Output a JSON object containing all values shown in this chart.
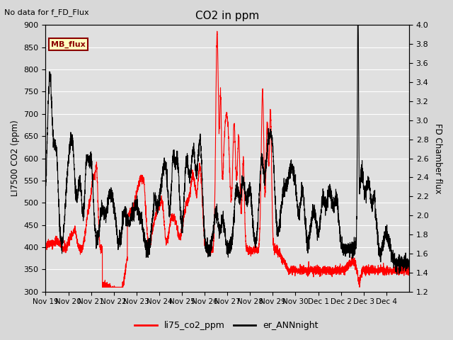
{
  "title": "CO2 in ppm",
  "top_left_text": "No data for f_FD_Flux",
  "legend_box_label": "MB_flux",
  "ylabel_left": "LI7500 CO2 (ppm)",
  "ylabel_right": "FD Chamber flux",
  "ylim_left": [
    300,
    900
  ],
  "ylim_right": [
    1.2,
    4.0
  ],
  "yticks_left": [
    300,
    350,
    400,
    450,
    500,
    550,
    600,
    650,
    700,
    750,
    800,
    850,
    900
  ],
  "yticks_right": [
    1.2,
    1.4,
    1.6,
    1.8,
    2.0,
    2.2,
    2.4,
    2.6,
    2.8,
    3.0,
    3.2,
    3.4,
    3.6,
    3.8,
    4.0
  ],
  "xtick_labels": [
    "Nov 19",
    "Nov 20",
    "Nov 21",
    "Nov 22",
    "Nov 23",
    "Nov 24",
    "Nov 25",
    "Nov 26",
    "Nov 27",
    "Nov 28",
    "Nov 29",
    "Nov 30",
    "Dec 1",
    "Dec 2",
    "Dec 3",
    "Dec 4"
  ],
  "color_red": "#ff0000",
  "color_black": "#000000",
  "legend_label_red": "li75_co2_ppm",
  "legend_label_black": "er_ANNnight",
  "bg_color": "#e0e0e0",
  "grid_color": "#ffffff",
  "line_width": 0.8,
  "fig_bg": "#d8d8d8"
}
